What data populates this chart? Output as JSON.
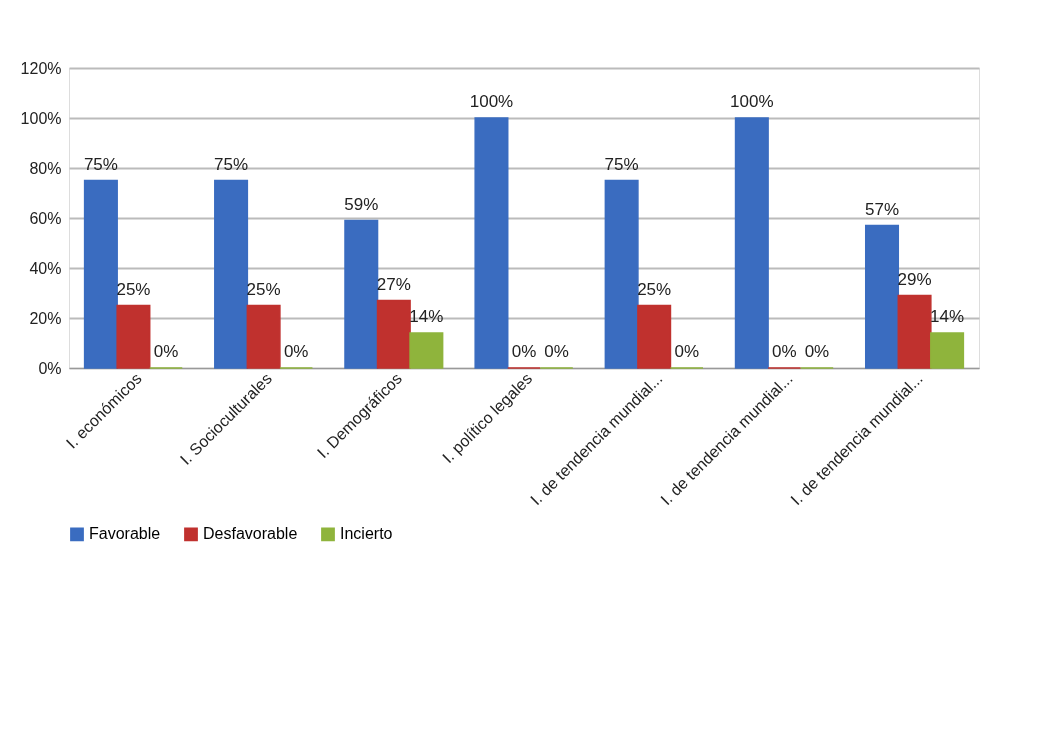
{
  "chart_data": {
    "type": "bar",
    "categories": [
      "I. económicos",
      "I. Socioculturales",
      "I. Demográficos",
      "I. político legales",
      "I. de tendencia mundial...",
      "I. de tendencia mundial...",
      "I. de tendencia mundial..."
    ],
    "series": [
      {
        "name": "Favorable",
        "color": "#3a6cc0",
        "values": [
          75,
          75,
          59,
          100,
          75,
          100,
          57
        ],
        "value_labels": [
          "75%",
          "75%",
          "59%",
          "100%",
          "75%",
          "100%",
          "57%"
        ]
      },
      {
        "name": "Desfavorable",
        "color": "#c0312e",
        "values": [
          25,
          25,
          27,
          0,
          25,
          0,
          29
        ],
        "value_labels": [
          "25%",
          "25%",
          "27%",
          "0%",
          "25%",
          "0%",
          "29%"
        ]
      },
      {
        "name": "Incierto",
        "color": "#8fb43c",
        "values": [
          0,
          0,
          14,
          0,
          0,
          0,
          14
        ],
        "value_labels": [
          "0%",
          "0%",
          "14%",
          "0%",
          "0%",
          "0%",
          "14%"
        ]
      }
    ],
    "ylim": [
      0,
      120
    ],
    "yticks": [
      {
        "value": 0,
        "label": "0%"
      },
      {
        "value": 20,
        "label": "20%"
      },
      {
        "value": 40,
        "label": "40%"
      },
      {
        "value": 60,
        "label": "60%"
      },
      {
        "value": 80,
        "label": "80%"
      },
      {
        "value": 100,
        "label": "100%"
      },
      {
        "value": 120,
        "label": "120%"
      }
    ],
    "grid": "y",
    "legend": "bottom"
  }
}
